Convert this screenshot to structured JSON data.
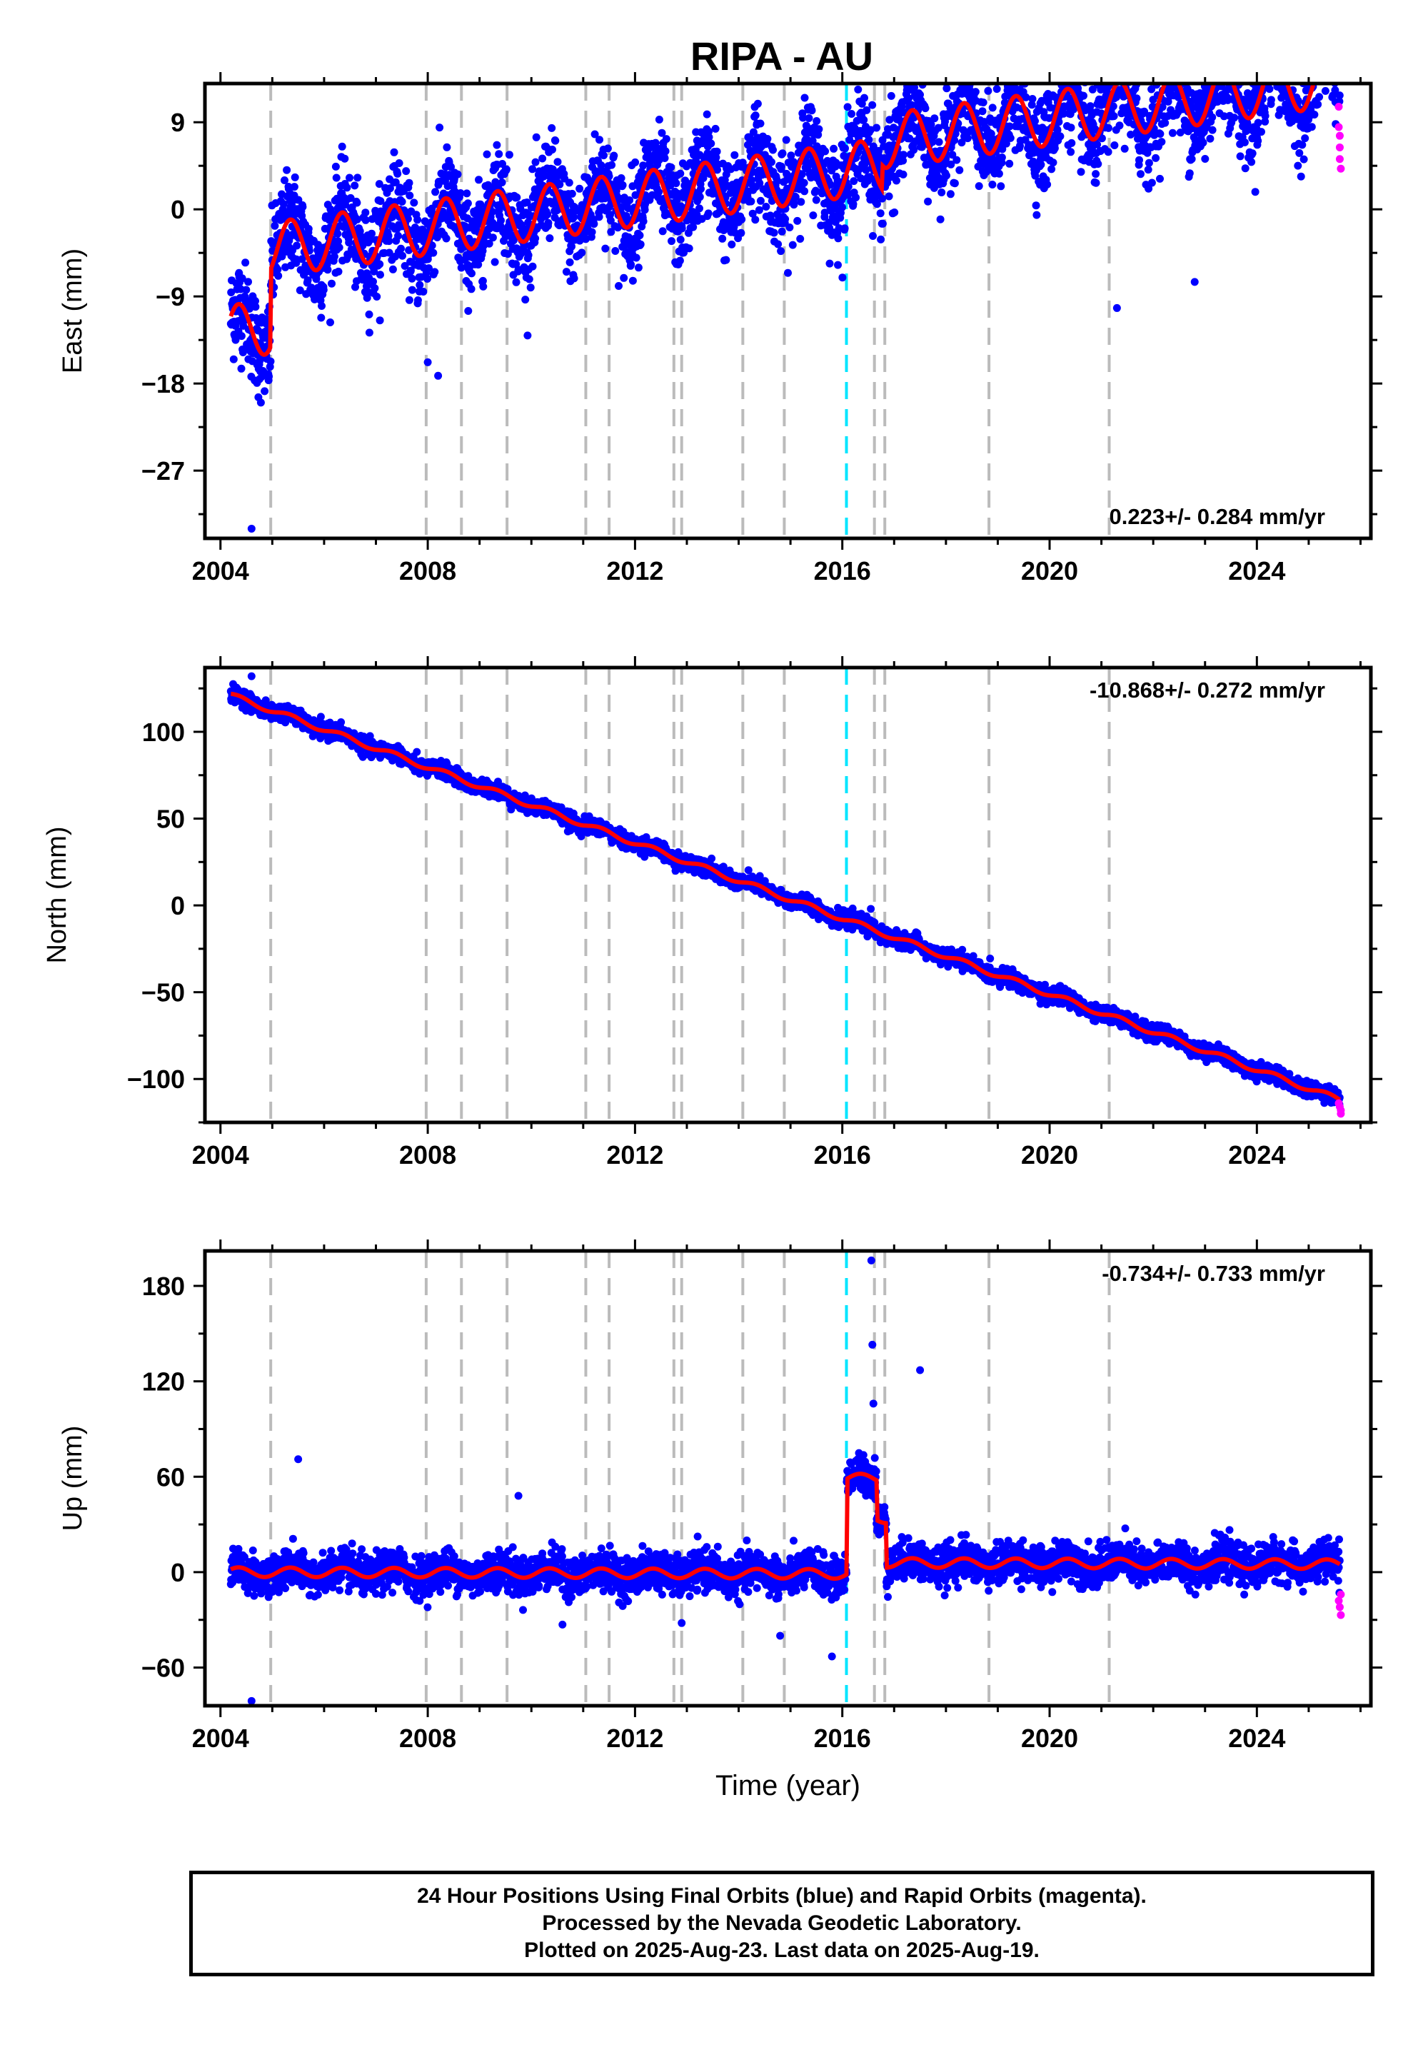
{
  "title": "RIPA - AU",
  "footer": {
    "line1": "24 Hour Positions Using Final Orbits (blue) and Rapid Orbits (magenta).",
    "line2": "Processed by the Nevada Geodetic Laboratory.",
    "line3": "Plotted on 2025-Aug-23. Last data on 2025-Aug-19."
  },
  "colors": {
    "final_points": "#0000ff",
    "rapid_points": "#ff00ff",
    "model_line": "#ff0000",
    "equipment_change_line": "#bbbbbb",
    "earthquake_line": "#00e5ff"
  },
  "chart_data": [
    {
      "type": "scatter",
      "name": "east",
      "ylabel": "East (mm)",
      "xlabel": "",
      "xlim": [
        2003.7,
        2026.2
      ],
      "ylim": [
        -34,
        13
      ],
      "xticks": [
        2004,
        2008,
        2012,
        2016,
        2020,
        2024
      ],
      "yticks": [
        9,
        0,
        -9,
        -18,
        -27
      ],
      "velocity_label": "0.223+/- 0.284 mm/yr",
      "velocity_pos": "bottom-right",
      "trend": {
        "start": [
          2004.2,
          -12.7
        ],
        "end": [
          2025.6,
          3.0
        ]
      },
      "offsets": [
        [
          2004.97,
          8.0
        ],
        [
          2016.77,
          2.5
        ]
      ],
      "seasonal_amplitude": 2.8,
      "scatter_sigma": 2.5,
      "outliers": [
        [
          2004.6,
          -33.0
        ],
        [
          2008.0,
          -15.8
        ],
        [
          2008.2,
          -17.2
        ],
        [
          2018.9,
          10.5
        ],
        [
          2021.3,
          -10.2
        ],
        [
          2022.8,
          -7.5
        ]
      ],
      "rapid_points": [
        [
          2025.58,
          10.6
        ],
        [
          2025.58,
          8.5
        ],
        [
          2025.6,
          7.6
        ],
        [
          2025.6,
          6.4
        ],
        [
          2025.6,
          5.2
        ],
        [
          2025.62,
          4.2
        ]
      ]
    },
    {
      "type": "scatter",
      "name": "north",
      "ylabel": "North (mm)",
      "xlabel": "",
      "xlim": [
        2003.7,
        2026.2
      ],
      "ylim": [
        -125,
        137
      ],
      "xticks": [
        2004,
        2008,
        2012,
        2016,
        2020,
        2024
      ],
      "yticks": [
        100,
        50,
        0,
        -50,
        -100
      ],
      "velocity_label": "-10.868+/- 0.272 mm/yr",
      "velocity_pos": "top-right",
      "trend": {
        "start": [
          2004.2,
          121.0
        ],
        "end": [
          2025.6,
          -112.0
        ]
      },
      "offsets": [],
      "seasonal_amplitude": 1.5,
      "scatter_sigma": 2.2,
      "outliers": [
        [
          2004.6,
          132.0
        ],
        [
          2016.55,
          -2.0
        ]
      ],
      "rapid_points": [
        [
          2025.58,
          -114.0
        ],
        [
          2025.6,
          -116.0
        ],
        [
          2025.62,
          -118.0
        ],
        [
          2025.62,
          -120.0
        ]
      ]
    },
    {
      "type": "scatter",
      "name": "up",
      "ylabel": "Up (mm)",
      "xlabel": "Time (year)",
      "xlim": [
        2003.7,
        2026.2
      ],
      "ylim": [
        -84,
        202
      ],
      "xticks": [
        2004,
        2008,
        2012,
        2016,
        2020,
        2024
      ],
      "yticks": [
        180,
        120,
        60,
        0,
        -60
      ],
      "velocity_label": "-0.734+/- 0.733 mm/yr",
      "velocity_pos": "top-right",
      "trend": {
        "start": [
          2004.2,
          0.0
        ],
        "end": [
          2025.6,
          -2.0
        ]
      },
      "offsets": [
        [
          2016.08,
          60.0
        ],
        [
          2016.66,
          -25.0
        ],
        [
          2016.85,
          -28.0
        ]
      ],
      "seasonal_amplitude": 3.0,
      "scatter_sigma": 6.0,
      "outliers": [
        [
          2004.6,
          -81.0
        ],
        [
          2005.5,
          71.0
        ],
        [
          2009.75,
          48.0
        ],
        [
          2016.56,
          196.0
        ],
        [
          2016.58,
          143.0
        ],
        [
          2016.6,
          106.0
        ],
        [
          2017.5,
          127.0
        ],
        [
          2015.8,
          -53.0
        ],
        [
          2014.8,
          -40.0
        ],
        [
          2010.6,
          -33.0
        ],
        [
          2012.9,
          -32.0
        ]
      ],
      "rapid_points": [
        [
          2025.58,
          -18.0
        ],
        [
          2025.6,
          -22.0
        ],
        [
          2025.62,
          -27.0
        ],
        [
          2025.62,
          -14.0
        ]
      ]
    }
  ],
  "equipment_changes": [
    2004.97,
    2007.97,
    2008.65,
    2009.53,
    2011.05,
    2011.5,
    2012.75,
    2012.9,
    2014.08,
    2014.88,
    2016.62,
    2016.82,
    2018.83,
    2021.15
  ],
  "earthquake_events": [
    2016.08
  ]
}
